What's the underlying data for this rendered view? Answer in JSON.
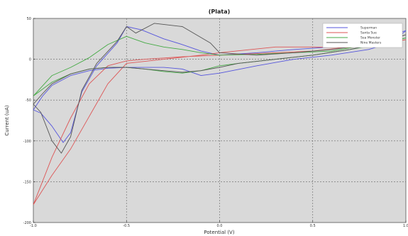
{
  "chart_data": {
    "type": "line",
    "title": "(Plata)",
    "xlabel": "Potential (V)",
    "ylabel": "Current (uA)",
    "xlim": [
      -1.0,
      1.0
    ],
    "ylim": [
      -200,
      50
    ],
    "x_ticks": [
      -1.0,
      -0.5,
      0.0,
      0.5,
      1.0
    ],
    "x_tick_labels": [
      "-1.0",
      "-0.5",
      "0.0",
      "0.5",
      "1.0"
    ],
    "y_ticks": [
      -200,
      -150,
      -100,
      -50,
      0,
      50
    ],
    "y_tick_labels": [
      "-200",
      "-150",
      "-100",
      "-50",
      "0",
      "50"
    ],
    "grid": true,
    "legend_position": "top-right",
    "series": [
      {
        "name": "Superman",
        "color": "#5555dd",
        "x": [
          -1.0,
          -0.96,
          -0.9,
          -0.84,
          -0.8,
          -0.74,
          -0.66,
          -0.55,
          -0.5,
          -0.42,
          -0.3,
          -0.2,
          -0.1,
          0.0,
          0.2,
          0.4,
          0.6,
          0.8,
          1.0,
          0.92,
          0.8,
          0.6,
          0.4,
          0.2,
          0.0,
          -0.1,
          -0.2,
          -0.3,
          -0.4,
          -0.5,
          -0.6,
          -0.7,
          -0.8,
          -0.9,
          -0.95,
          -1.0
        ],
        "y": [
          -62,
          -66,
          -82,
          -102,
          -90,
          -40,
          -8,
          20,
          40,
          36,
          25,
          18,
          10,
          5,
          8,
          12,
          15,
          22,
          35,
          20,
          12,
          5,
          0,
          -8,
          -17,
          -20,
          -12,
          -10,
          -10,
          -10,
          -11,
          -14,
          -20,
          -32,
          -45,
          -62
        ]
      },
      {
        "name": "Santa Sue",
        "color": "#dd5555",
        "x": [
          -1.0,
          -0.9,
          -0.8,
          -0.7,
          -0.6,
          -0.5,
          -0.3,
          -0.1,
          0.0,
          0.3,
          0.5,
          0.7,
          0.8,
          1.0,
          0.9,
          0.7,
          0.5,
          0.3,
          0.1,
          0.0,
          -0.2,
          -0.4,
          -0.5,
          -0.6,
          -0.7,
          -0.8,
          -0.9,
          -0.96,
          -1.0
        ],
        "y": [
          -178,
          -142,
          -110,
          -70,
          -30,
          -5,
          0,
          5,
          8,
          15,
          15,
          14,
          18,
          24,
          20,
          15,
          10,
          8,
          6,
          5,
          3,
          0,
          -2,
          -8,
          -30,
          -72,
          -120,
          -155,
          -178
        ]
      },
      {
        "name": "Sea Monster",
        "color": "#44aa44",
        "x": [
          -1.0,
          -0.9,
          -0.8,
          -0.7,
          -0.6,
          -0.5,
          -0.4,
          -0.3,
          -0.2,
          -0.1,
          0.0,
          0.2,
          0.4,
          0.6,
          0.8,
          1.0,
          0.9,
          0.7,
          0.5,
          0.3,
          0.1,
          0.0,
          -0.1,
          -0.2,
          -0.3,
          -0.4,
          -0.5,
          -0.6,
          -0.7,
          -0.8,
          -0.9,
          -1.0
        ],
        "y": [
          -45,
          -20,
          -10,
          2,
          18,
          28,
          20,
          15,
          12,
          8,
          5,
          6,
          8,
          10,
          18,
          26,
          20,
          12,
          5,
          0,
          -5,
          -8,
          -14,
          -17,
          -15,
          -12,
          -10,
          -10,
          -12,
          -18,
          -28,
          -45
        ]
      },
      {
        "name": "Nine Masters",
        "color": "#555555",
        "x": [
          -1.0,
          -0.96,
          -0.9,
          -0.85,
          -0.8,
          -0.74,
          -0.66,
          -0.55,
          -0.5,
          -0.45,
          -0.35,
          -0.2,
          -0.05,
          0.0,
          0.2,
          0.4,
          0.6,
          0.8,
          1.0,
          0.9,
          0.7,
          0.5,
          0.3,
          0.1,
          0.0,
          -0.1,
          -0.2,
          -0.4,
          -0.5,
          -0.6,
          -0.7,
          -0.8,
          -0.9,
          -0.95,
          -1.0
        ],
        "y": [
          -55,
          -65,
          -100,
          -115,
          -95,
          -38,
          -5,
          22,
          40,
          32,
          44,
          40,
          20,
          8,
          5,
          8,
          12,
          18,
          30,
          22,
          12,
          5,
          0,
          -5,
          -10,
          -14,
          -16,
          -12,
          -10,
          -10,
          -12,
          -18,
          -30,
          -42,
          -55
        ]
      }
    ]
  }
}
